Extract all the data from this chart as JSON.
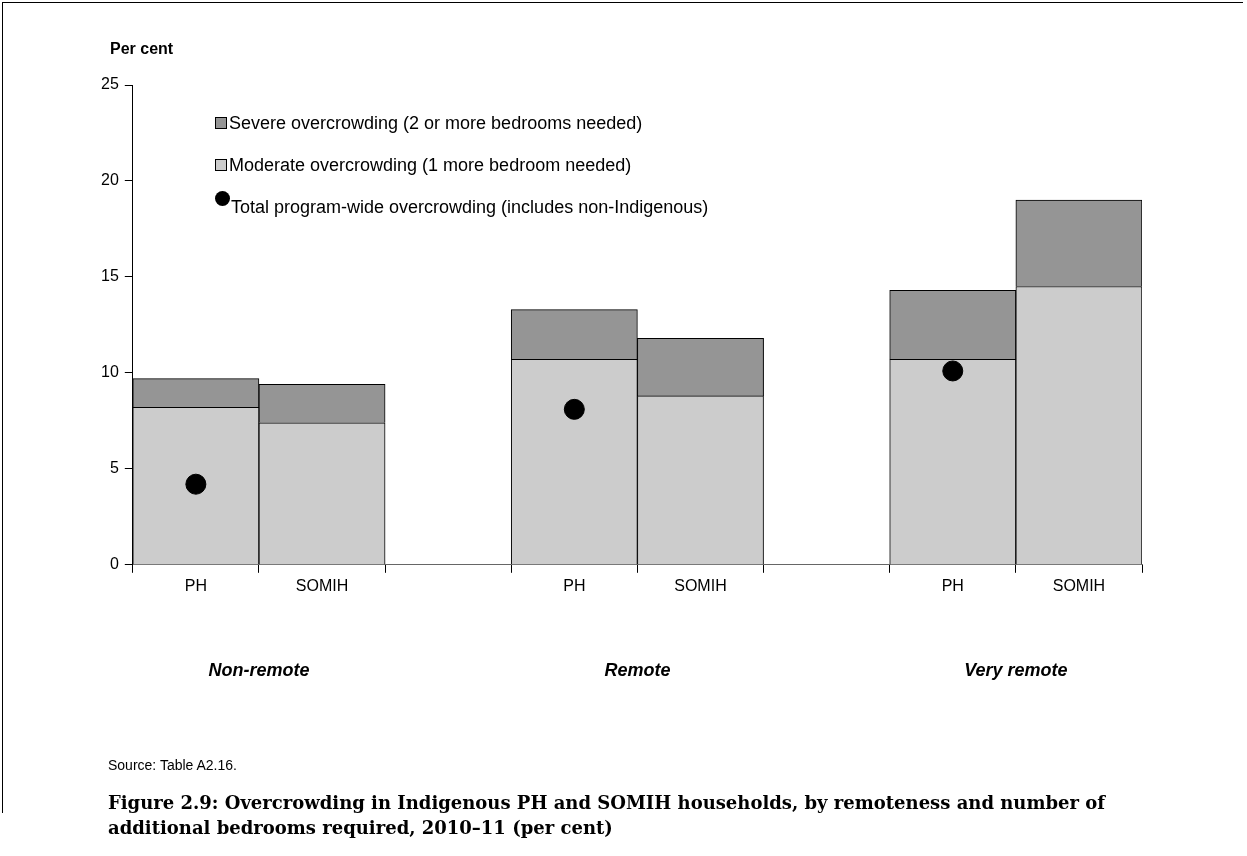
{
  "chart_data": {
    "type": "bar",
    "title": "Figure 2.9: Overcrowding in Indigenous PH and SOMIH households, by remoteness and number of additional bedrooms required, 2010–11 (per cent)",
    "ylabel": "Per cent",
    "categories": [
      "PH",
      "SOMIH",
      null,
      "PH",
      "SOMIH",
      null,
      "PH",
      "SOMIH"
    ],
    "stacked": true,
    "series": [
      {
        "name": "Moderate overcrowding (1 more bedroom needed)",
        "color": "#cccccc",
        "values": [
          8.2,
          7.4,
          null,
          10.7,
          8.8,
          null,
          10.7,
          14.5
        ]
      },
      {
        "name": "Severe overcrowding (2 or more bedrooms needed)",
        "color": "#959595",
        "values": [
          1.5,
          2.0,
          null,
          2.6,
          3.0,
          null,
          3.6,
          4.5
        ]
      },
      {
        "name": "Total program-wide overcrowding (includes non-Indigenous)",
        "type": "scatter",
        "color": "#000000",
        "values": [
          4.2,
          null,
          null,
          8.1,
          null,
          null,
          10.1,
          null
        ]
      }
    ],
    "ylim": [
      0,
      25
    ],
    "yticks": [
      0,
      5,
      10,
      15,
      20,
      25
    ],
    "grid": false,
    "legend": "top left",
    "marker": "circle",
    "annotations": [
      "Non-remote",
      "Remote",
      "Very remote",
      "Source: Table A2.16."
    ]
  }
}
